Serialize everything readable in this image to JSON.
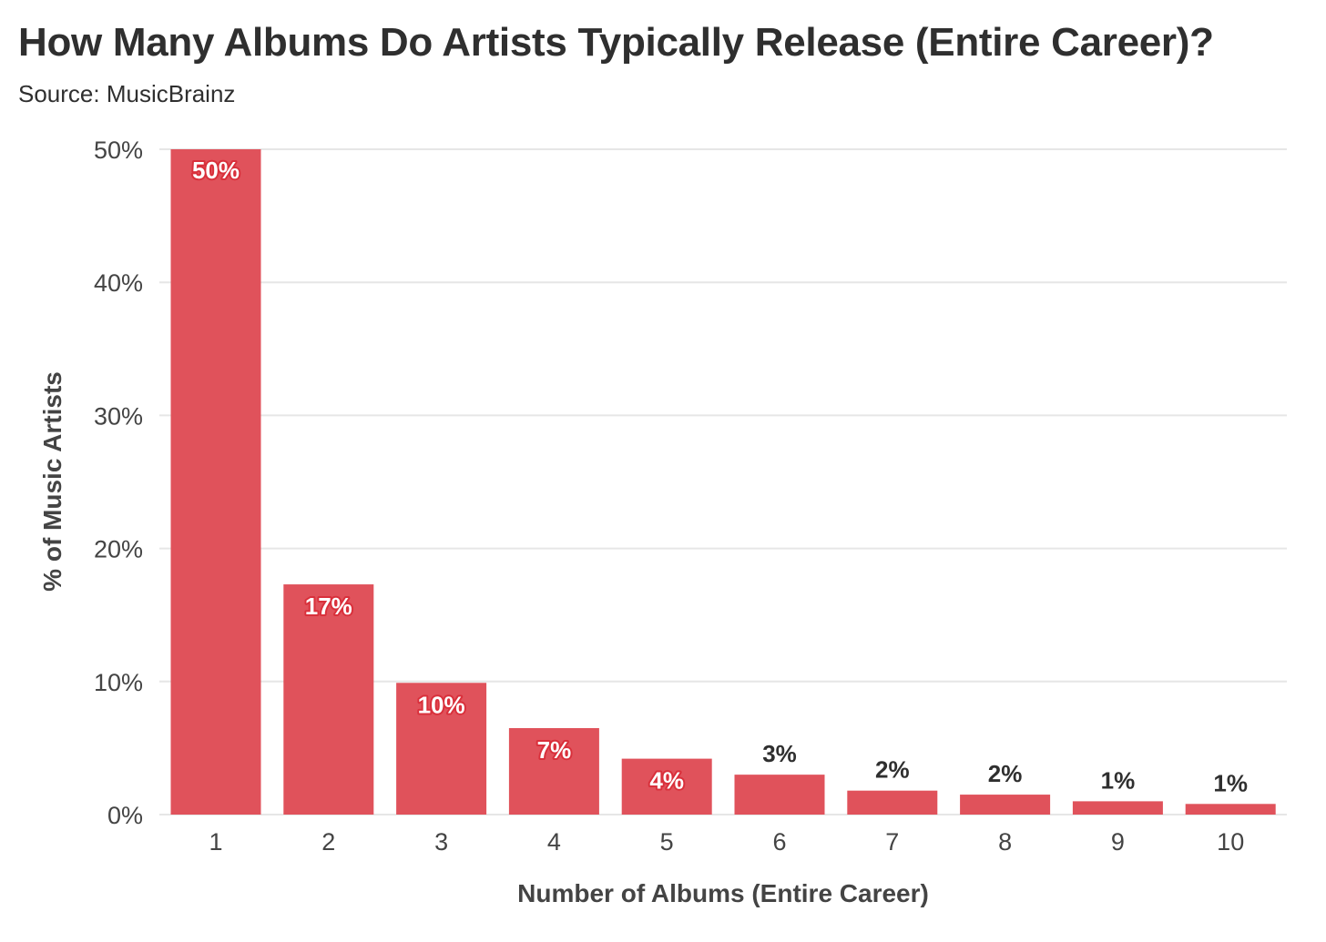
{
  "header": {
    "title": "How Many Albums Do Artists Typically Release (Entire Career)?",
    "subtitle": "Source: MusicBrainz"
  },
  "colors": {
    "bar": "#e0525b",
    "label_inside": "#ffffff",
    "label_outside": "#2f2f2f",
    "grid": "#e6e6e6",
    "axis_text": "#444444"
  },
  "chart_data": {
    "type": "bar",
    "title": "How Many Albums Do Artists Typically Release (Entire Career)?",
    "subtitle": "Source: MusicBrainz",
    "xlabel": "Number of Albums (Entire Career)",
    "ylabel": "% of Music Artists",
    "categories": [
      "1",
      "2",
      "3",
      "4",
      "5",
      "6",
      "7",
      "8",
      "9",
      "10"
    ],
    "values": [
      50,
      17.3,
      9.9,
      6.5,
      4.2,
      3.0,
      1.8,
      1.5,
      1.0,
      0.8
    ],
    "data_labels": [
      "50%",
      "17%",
      "10%",
      "7%",
      "4%",
      "3%",
      "2%",
      "2%",
      "1%",
      "1%"
    ],
    "ylim": [
      0,
      50
    ],
    "yticks": [
      0,
      10,
      20,
      30,
      40,
      50
    ],
    "ytick_labels": [
      "0%",
      "10%",
      "20%",
      "30%",
      "40%",
      "50%"
    ],
    "grid": true,
    "legend": "none"
  }
}
